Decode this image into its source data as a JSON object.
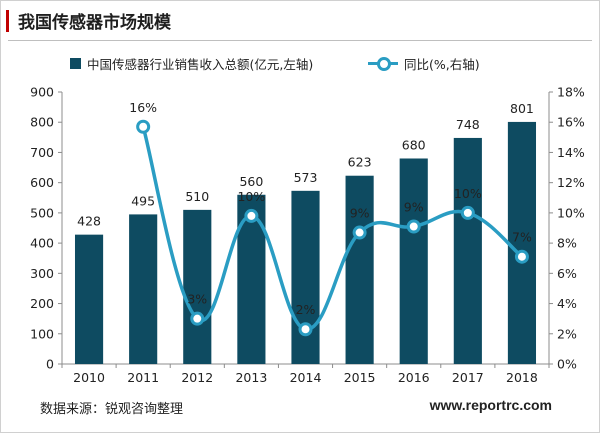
{
  "header": {
    "title": "我国传感器市场规模"
  },
  "legend": {
    "bar_label": "中国传感器行业销售收入总额(亿元,左轴)",
    "line_label": "同比(%,右轴)"
  },
  "colors": {
    "bar": "#0e4b61",
    "line": "#2a9dc3",
    "title_accent": "#c00000"
  },
  "chart_data": {
    "type": "bar",
    "categories": [
      "2010",
      "2011",
      "2012",
      "2013",
      "2014",
      "2015",
      "2016",
      "2017",
      "2018"
    ],
    "series": [
      {
        "name": "中国传感器行业销售收入总额(亿元,左轴)",
        "type": "bar",
        "axis": "left",
        "values": [
          428,
          495,
          510,
          560,
          573,
          623,
          680,
          748,
          801
        ],
        "labels": [
          "428",
          "495",
          "510",
          "560",
          "573",
          "623",
          "680",
          "748",
          "801"
        ]
      },
      {
        "name": "同比(%,右轴)",
        "type": "line",
        "axis": "right",
        "values": [
          null,
          15.7,
          3.0,
          9.8,
          2.3,
          8.7,
          9.1,
          10.0,
          7.1
        ],
        "labels": [
          null,
          "16%",
          "3%",
          "10%",
          "2%",
          "9%",
          "9%",
          "10%",
          "7%"
        ]
      }
    ],
    "y_left": {
      "min": 0,
      "max": 900,
      "step": 100,
      "ticks": [
        "0",
        "100",
        "200",
        "300",
        "400",
        "500",
        "600",
        "700",
        "800",
        "900"
      ]
    },
    "y_right": {
      "min": 0,
      "max": 18,
      "step": 2,
      "ticks": [
        "0%",
        "2%",
        "4%",
        "6%",
        "8%",
        "10%",
        "12%",
        "14%",
        "16%",
        "18%"
      ]
    },
    "grid": false,
    "legend_position": "top"
  },
  "footer": {
    "source": "数据来源：锐观咨询整理",
    "website": "www.reportrc.com"
  }
}
